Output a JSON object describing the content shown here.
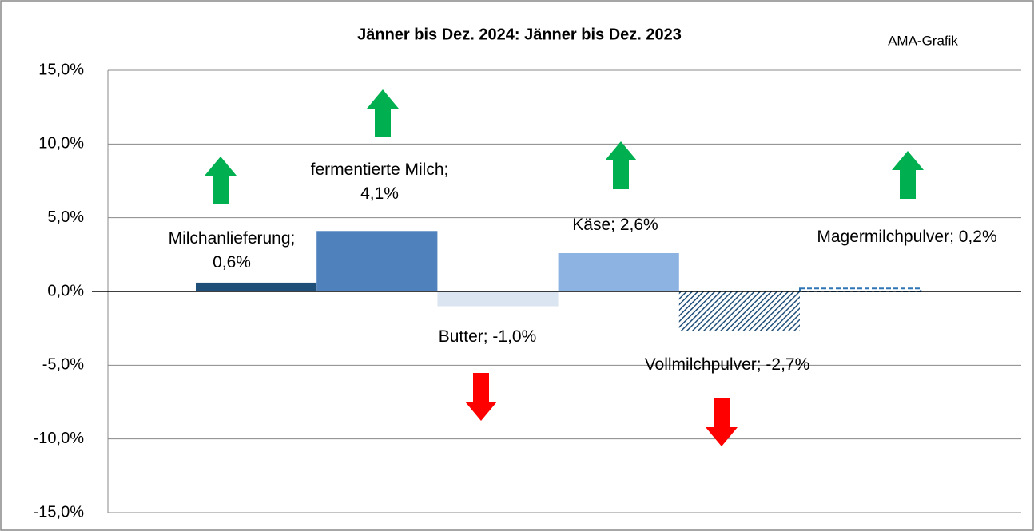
{
  "chart_data": {
    "type": "bar",
    "title": "Jänner bis Dez. 2024: Jänner bis Dez. 2023",
    "annotation": "AMA-Grafik",
    "values": [
      0.6,
      4.1,
      -1.0,
      2.6,
      -2.7,
      0.2
    ],
    "value_labels": [
      "Milchanlieferung; 0,6%",
      "fermentierte Milch; 4,1%",
      "Butter; -1,0%",
      "Käse; 2,6%",
      "Vollmilchpulver; -2,7%",
      "Magermilchpulver; 0,2%"
    ],
    "colors": [
      "#1f4e79",
      "#4f81bd",
      "#dbe5f1",
      "#8db3e2",
      "#1f4e79",
      "#2e75b6"
    ],
    "ylim": [
      -15,
      15
    ],
    "yticks": [
      {
        "value": -15,
        "label": "-15,0%"
      },
      {
        "value": -10,
        "label": "-10,0%"
      },
      {
        "value": -5,
        "label": "-5,0%"
      },
      {
        "value": 0,
        "label": "0,0%"
      },
      {
        "value": 5,
        "label": "5,0%"
      },
      {
        "value": 10,
        "label": "10,0%"
      },
      {
        "value": 15,
        "label": "15,0%"
      }
    ],
    "grid": true
  }
}
